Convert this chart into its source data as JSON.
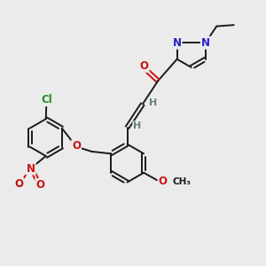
{
  "bg_color": "#ebebeb",
  "bond_color": "#1a1a1a",
  "bond_width": 1.4,
  "atom_colors": {
    "C": "#1a1a1a",
    "H": "#6b8080",
    "O": "#cc1111",
    "N": "#2222cc",
    "Cl": "#228B22",
    "NO2_N": "#cc1111",
    "NO2_O": "#cc1111"
  },
  "font_size": 8.5,
  "fig_width": 3.0,
  "fig_height": 3.0,
  "dpi": 100,
  "xlim": [
    0,
    10
  ],
  "ylim": [
    0,
    10
  ]
}
